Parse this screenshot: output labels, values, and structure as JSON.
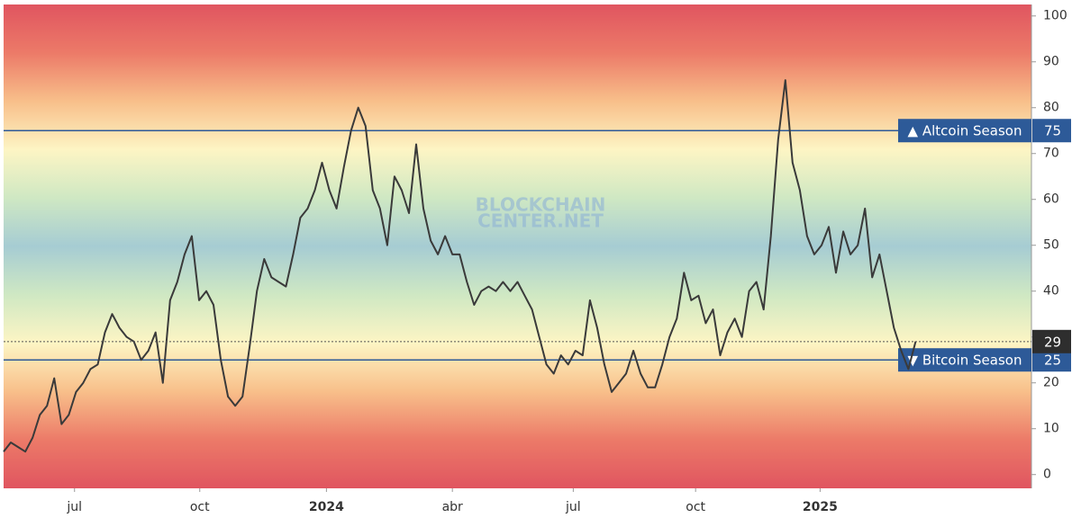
{
  "chart_data": {
    "type": "line",
    "watermark": [
      "BLOCKCHAIN",
      "CENTER.NET"
    ],
    "values": [
      5,
      7,
      6,
      5,
      8,
      13,
      15,
      21,
      11,
      13,
      18,
      20,
      23,
      24,
      31,
      35,
      32,
      30,
      29,
      25,
      27,
      31,
      20,
      38,
      42,
      48,
      52,
      38,
      40,
      37,
      25,
      17,
      15,
      17,
      28,
      40,
      47,
      43,
      42,
      41,
      48,
      56,
      58,
      62,
      68,
      62,
      58,
      67,
      75,
      80,
      76,
      62,
      58,
      50,
      65,
      62,
      57,
      72,
      58,
      51,
      48,
      52,
      48,
      48,
      42,
      37,
      40,
      41,
      40,
      42,
      40,
      42,
      39,
      36,
      30,
      24,
      22,
      26,
      24,
      27,
      26,
      38,
      32,
      24,
      18,
      20,
      22,
      27,
      22,
      19,
      19,
      24,
      30,
      34,
      44,
      38,
      39,
      33,
      36,
      26,
      31,
      34,
      30,
      40,
      42,
      36,
      52,
      73,
      86,
      68,
      62,
      52,
      48,
      50,
      54,
      44,
      53,
      48,
      50,
      58,
      43,
      48,
      40,
      32,
      27,
      23,
      29
    ],
    "color": "#3a3a3a",
    "xlim": [
      0,
      142
    ],
    "xticks": [
      {
        "value": 9.8,
        "label": "jul"
      },
      {
        "value": 27.1,
        "label": "oct"
      },
      {
        "value": 44.6,
        "label": "2024"
      },
      {
        "value": 62,
        "label": "abr"
      },
      {
        "value": 78.7,
        "label": "jul"
      },
      {
        "value": 95.6,
        "label": "oct"
      },
      {
        "value": 112.8,
        "label": "2025"
      }
    ],
    "ylim": [
      -3,
      102.5
    ],
    "yticks": [
      0,
      10,
      20,
      30,
      40,
      50,
      60,
      70,
      80,
      90,
      100
    ],
    "reference_lines": [
      {
        "value": 75,
        "label": "▲ Altcoin Season",
        "color": "#2d5a98"
      },
      {
        "value": 25,
        "label": "▼ Bitcoin Season",
        "color": "#2d5a98"
      }
    ]
  }
}
